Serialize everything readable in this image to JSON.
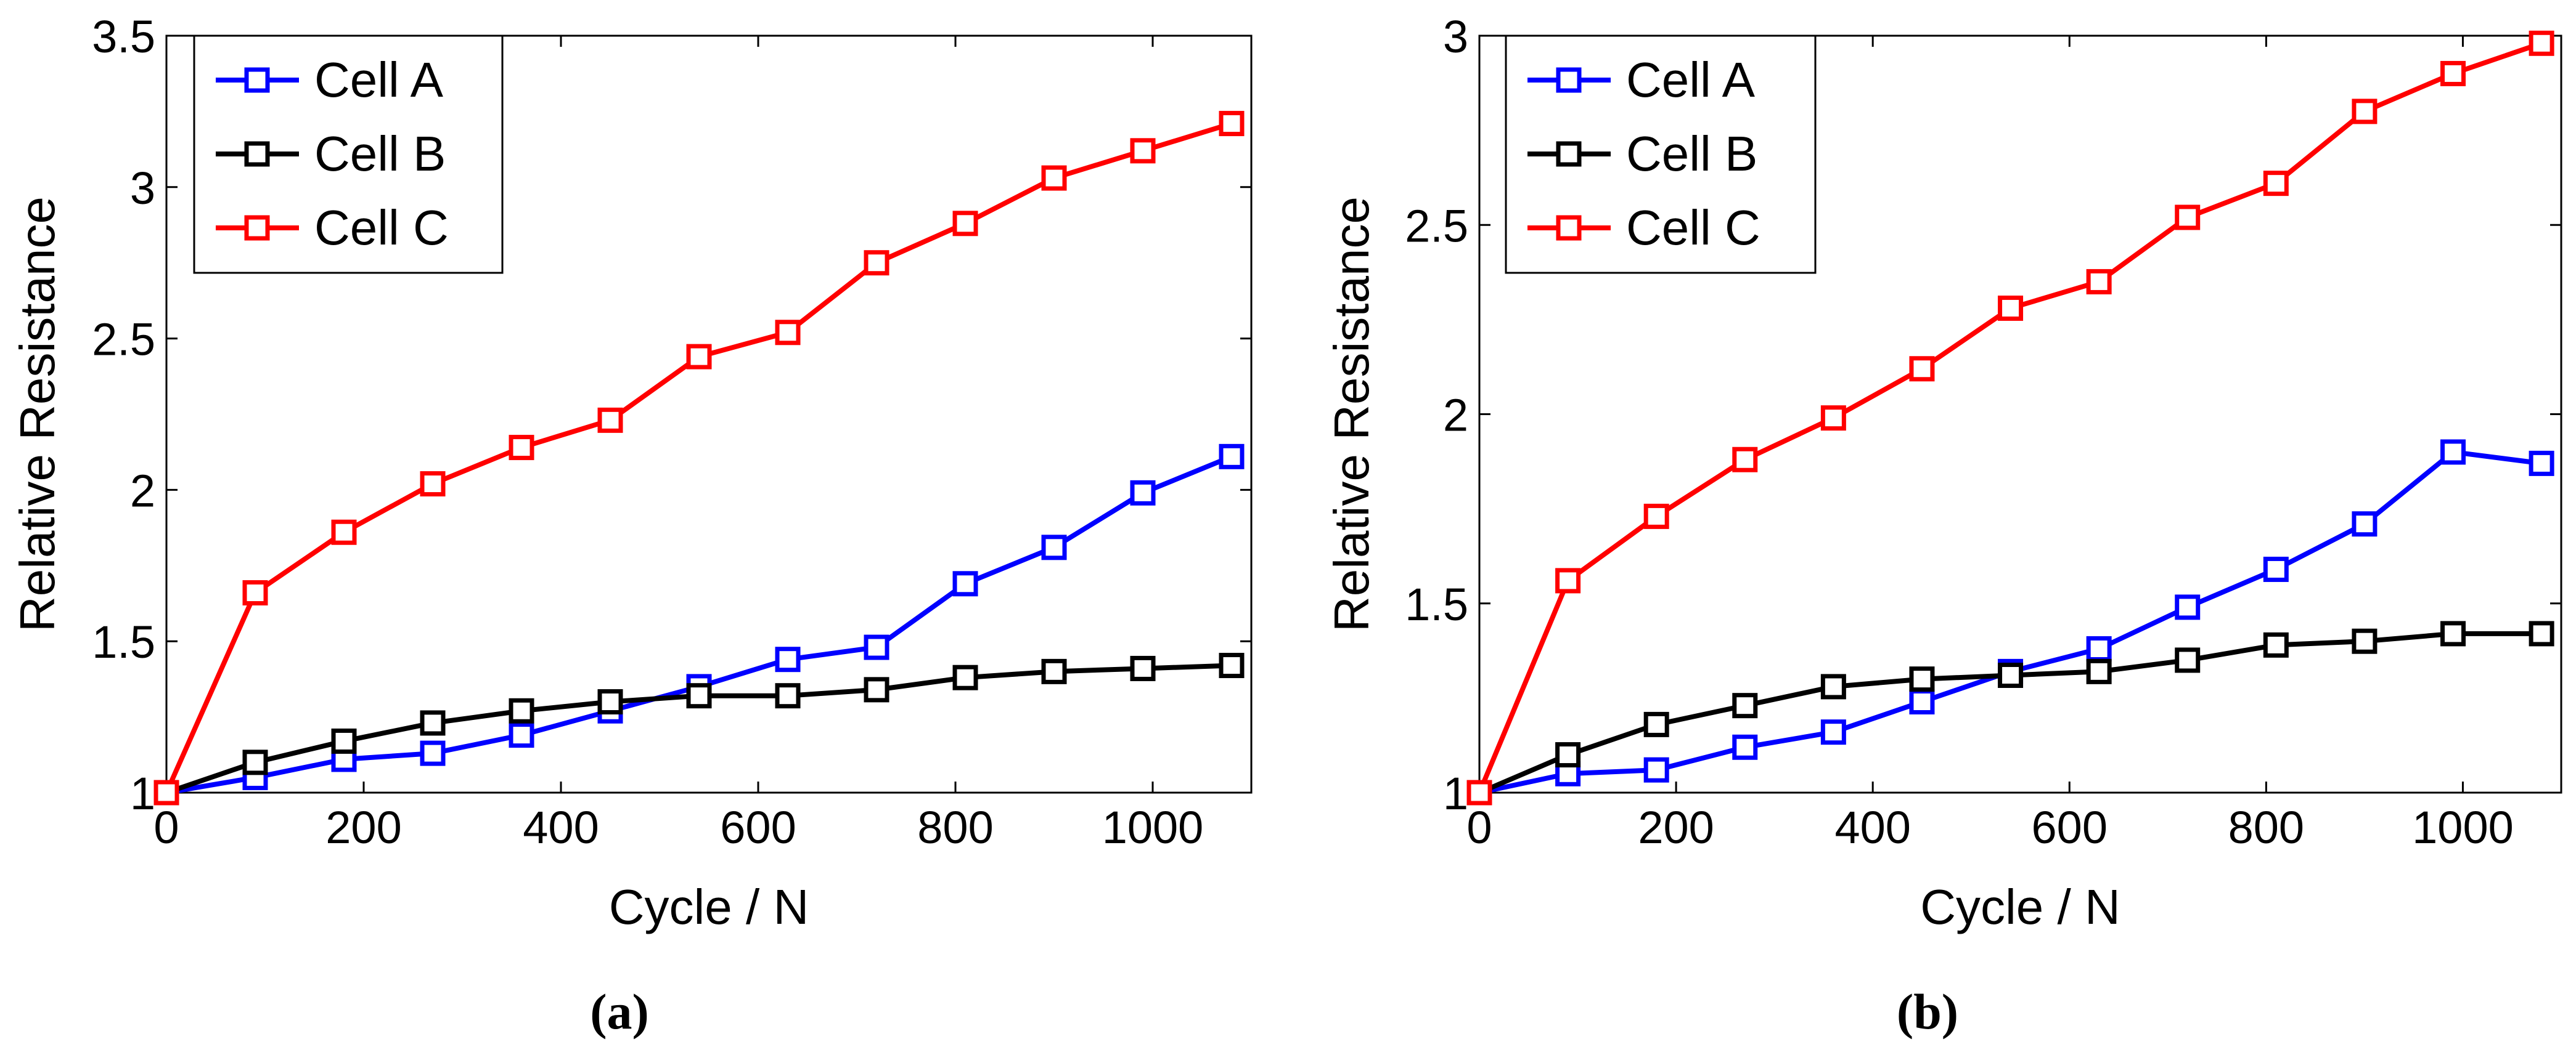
{
  "chart_data": [
    {
      "type": "line",
      "panel_label": "(a)",
      "xlabel": "Cycle / N",
      "ylabel": "Relative Resistance",
      "xlim": [
        0,
        1100
      ],
      "ylim": [
        1,
        3.5
      ],
      "xticks": [
        0,
        200,
        400,
        600,
        800,
        1000
      ],
      "xtick_labels": [
        "0",
        "200",
        "400",
        "600",
        "800",
        "1000"
      ],
      "yticks": [
        1,
        1.5,
        2,
        2.5,
        3,
        3.5
      ],
      "ytick_labels": [
        "1",
        "1.5",
        "2",
        "2.5",
        "3",
        "3.5"
      ],
      "grid": false,
      "legend_position": "top-left",
      "x": [
        0,
        90,
        180,
        270,
        360,
        450,
        540,
        630,
        720,
        810,
        900,
        990,
        1080
      ],
      "series": [
        {
          "name": "Cell A",
          "color": "#0000ff",
          "marker": "square",
          "values": [
            1.0,
            1.05,
            1.11,
            1.13,
            1.19,
            1.27,
            1.35,
            1.44,
            1.48,
            1.69,
            1.81,
            1.99,
            2.11
          ]
        },
        {
          "name": "Cell B",
          "color": "#000000",
          "marker": "square",
          "values": [
            1.0,
            1.1,
            1.17,
            1.23,
            1.27,
            1.3,
            1.32,
            1.32,
            1.34,
            1.38,
            1.4,
            1.41,
            1.42
          ]
        },
        {
          "name": "Cell C",
          "color": "#ff0000",
          "marker": "square",
          "values": [
            1.0,
            1.66,
            1.86,
            2.02,
            2.14,
            2.23,
            2.44,
            2.52,
            2.75,
            2.88,
            3.03,
            3.12,
            3.21
          ]
        }
      ]
    },
    {
      "type": "line",
      "panel_label": "(b)",
      "xlabel": "Cycle / N",
      "ylabel": "Relative Resistance",
      "xlim": [
        0,
        1100
      ],
      "ylim": [
        1,
        3
      ],
      "xticks": [
        0,
        200,
        400,
        600,
        800,
        1000
      ],
      "xtick_labels": [
        "0",
        "200",
        "400",
        "600",
        "800",
        "1000"
      ],
      "yticks": [
        1,
        1.5,
        2,
        2.5,
        3
      ],
      "ytick_labels": [
        "1",
        "1.5",
        "2",
        "2.5",
        "3"
      ],
      "grid": false,
      "legend_position": "top-left",
      "x": [
        0,
        90,
        180,
        270,
        360,
        450,
        540,
        630,
        720,
        810,
        900,
        990,
        1080
      ],
      "series": [
        {
          "name": "Cell A",
          "color": "#0000ff",
          "marker": "square",
          "values": [
            1.0,
            1.05,
            1.06,
            1.12,
            1.16,
            1.24,
            1.32,
            1.38,
            1.49,
            1.59,
            1.71,
            1.9,
            1.87
          ]
        },
        {
          "name": "Cell B",
          "color": "#000000",
          "marker": "square",
          "values": [
            1.0,
            1.1,
            1.18,
            1.23,
            1.28,
            1.3,
            1.31,
            1.32,
            1.35,
            1.39,
            1.4,
            1.42,
            1.42
          ]
        },
        {
          "name": "Cell C",
          "color": "#ff0000",
          "marker": "square",
          "values": [
            1.0,
            1.56,
            1.73,
            1.88,
            1.99,
            2.12,
            2.28,
            2.35,
            2.52,
            2.61,
            2.8,
            2.9,
            2.98
          ]
        }
      ]
    }
  ]
}
